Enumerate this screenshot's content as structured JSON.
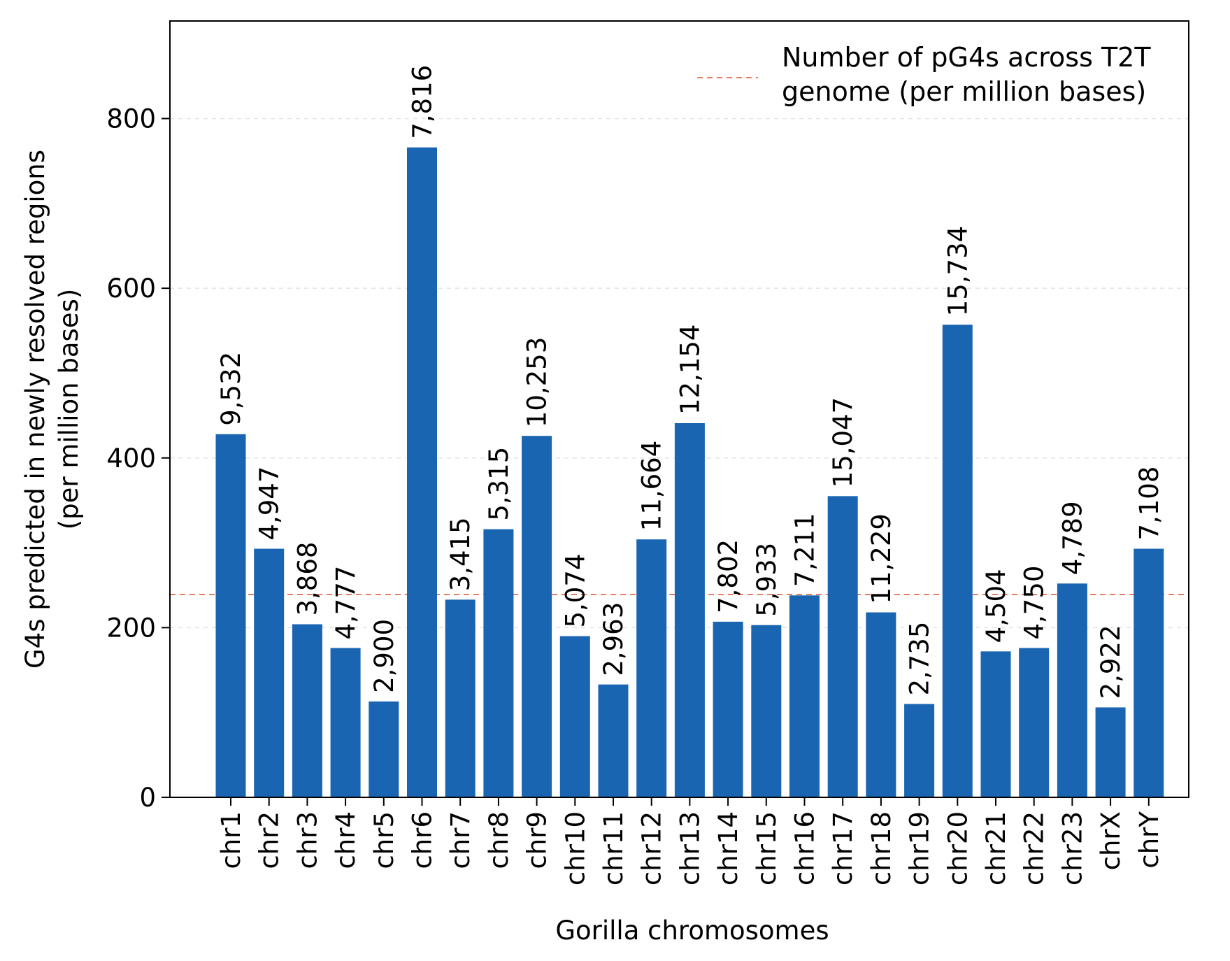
{
  "chart_data": {
    "type": "bar",
    "title": "",
    "xlabel": "Gorilla chromosomes",
    "ylabel_lines": [
      "G4s predicted in newly resolved regions",
      "(per million bases)"
    ],
    "ylim": [
      0,
      915
    ],
    "yticks": [
      0,
      200,
      400,
      600,
      800
    ],
    "grid": "horizontal dashed",
    "categories": [
      "chr1",
      "chr2",
      "chr3",
      "chr4",
      "chr5",
      "chr6",
      "chr7",
      "chr8",
      "chr9",
      "chr10",
      "chr11",
      "chr12",
      "chr13",
      "chr14",
      "chr15",
      "chr16",
      "chr17",
      "chr18",
      "chr19",
      "chr20",
      "chr21",
      "chr22",
      "chr23",
      "chrX",
      "chrY"
    ],
    "values": [
      428,
      293,
      204,
      176,
      113,
      766,
      233,
      316,
      426,
      190,
      133,
      304,
      441,
      207,
      203,
      238,
      355,
      218,
      110,
      557,
      172,
      176,
      252,
      106,
      293
    ],
    "bar_labels": [
      "9,532",
      "4,947",
      "3,868",
      "4,777",
      "2,900",
      "7,816",
      "3,415",
      "5,315",
      "10,253",
      "5,074",
      "2,963",
      "11,664",
      "12,154",
      "7,802",
      "5,933",
      "7,211",
      "15,047",
      "11,229",
      "2,735",
      "15,734",
      "4,504",
      "4,750",
      "4,789",
      "2,922",
      "7,108"
    ],
    "bar_color": "#1a65b2",
    "reference_line": {
      "value": 239,
      "color": "#e0532c",
      "style": "dashed",
      "label_lines": [
        "Number of pG4s across T2T",
        "genome (per million bases)"
      ]
    },
    "legend_position": "top-right"
  }
}
